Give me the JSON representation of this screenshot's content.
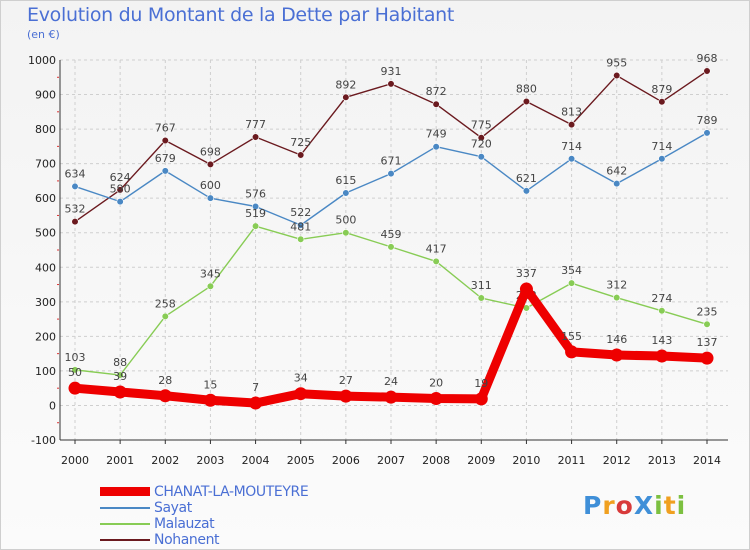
{
  "title": "Evolution du Montant de la Dette par Habitant",
  "subtitle": "(en €)",
  "logo": "ProXiti",
  "chart_data": {
    "type": "line",
    "x": [
      2000,
      2001,
      2002,
      2003,
      2004,
      2005,
      2006,
      2007,
      2008,
      2009,
      2010,
      2011,
      2012,
      2013,
      2014
    ],
    "ylim": [
      -100,
      1000
    ],
    "yticks": [
      -100,
      0,
      100,
      200,
      300,
      400,
      500,
      600,
      700,
      800,
      900,
      1000
    ],
    "grid": true,
    "legend_position": "bottom-left",
    "series": [
      {
        "name": "Nohanent",
        "color": "#6b1a1f",
        "values": [
          532,
          624,
          767,
          698,
          777,
          725,
          892,
          931,
          872,
          775,
          880,
          813,
          955,
          879,
          968
        ]
      },
      {
        "name": "Sayat",
        "color": "#4a88c4",
        "values": [
          634,
          590,
          679,
          600,
          576,
          522,
          615,
          671,
          749,
          720,
          621,
          714,
          642,
          714,
          789
        ]
      },
      {
        "name": "Malauzat",
        "color": "#88cc55",
        "values": [
          103,
          88,
          258,
          345,
          519,
          481,
          500,
          459,
          417,
          311,
          282,
          354,
          312,
          274,
          235
        ]
      },
      {
        "name": "CHANAT-LA-MOUTEYRE",
        "color": "#ee0000",
        "values": [
          50,
          39,
          28,
          15,
          7,
          34,
          27,
          24,
          20,
          19,
          337,
          155,
          146,
          143,
          137
        ]
      }
    ]
  }
}
